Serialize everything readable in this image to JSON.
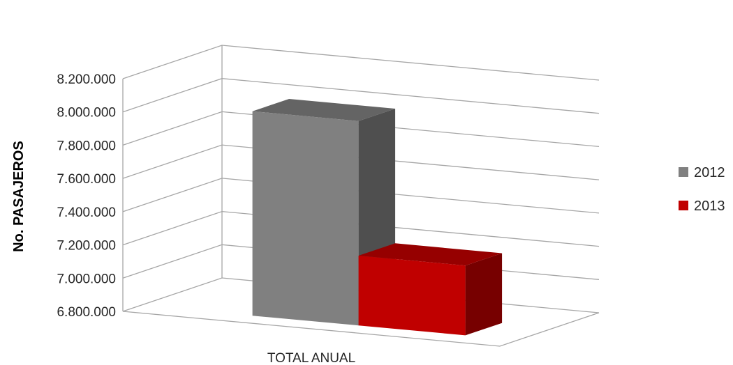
{
  "chart_data": {
    "type": "bar",
    "title": "",
    "categories": [
      "TOTAL ANUAL"
    ],
    "series": [
      {
        "name": "2012",
        "values": [
          8030000
        ],
        "color": "#808080"
      },
      {
        "name": "2013",
        "values": [
          7220000
        ],
        "color": "#c00000"
      }
    ],
    "xlabel": "",
    "ylabel": "No. PASAJEROS",
    "ylim": [
      6800000,
      8200000
    ],
    "yticks": [
      "6.800.000",
      "7.000.000",
      "7.200.000",
      "7.400.000",
      "7.600.000",
      "7.800.000",
      "8.000.000",
      "8.200.000"
    ],
    "style": "3d-column",
    "grid": true,
    "legend_position": "right"
  }
}
